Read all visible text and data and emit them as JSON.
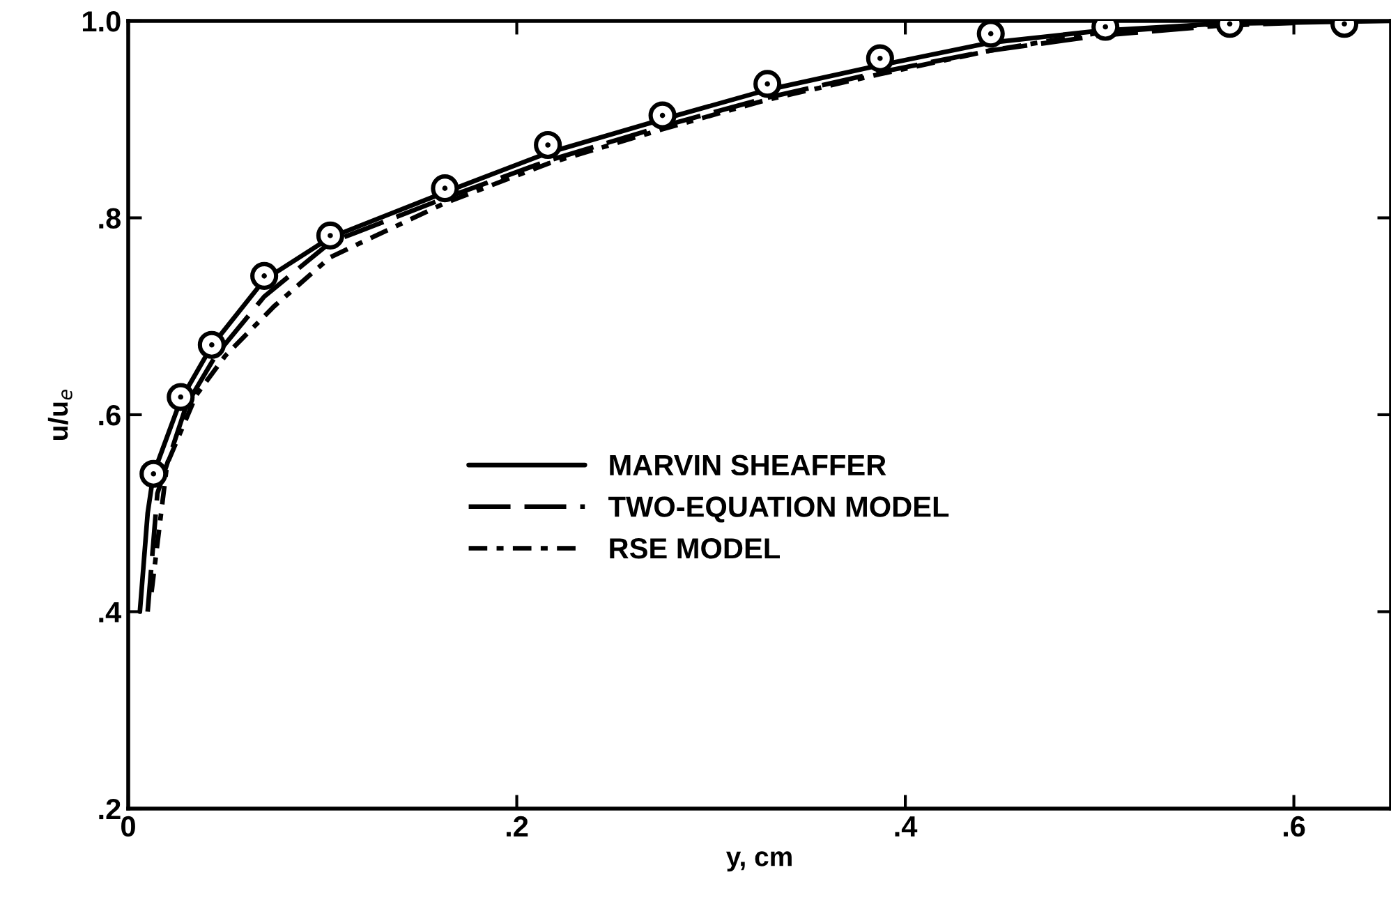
{
  "chart_data": {
    "type": "line",
    "xlabel": "y, cm",
    "ylabel": "u/u$_{e}$",
    "xlim": [
      0,
      0.65
    ],
    "ylim": [
      0.2,
      1.0
    ],
    "xticks": [
      {
        "value": 0,
        "label": "0"
      },
      {
        "value": 0.2,
        "label": ".2"
      },
      {
        "value": 0.4,
        "label": ".4"
      },
      {
        "value": 0.6,
        "label": ".6"
      }
    ],
    "yticks": [
      {
        "value": 0.2,
        "label": ".2"
      },
      {
        "value": 0.4,
        "label": ".4"
      },
      {
        "value": 0.6,
        "label": ".6"
      },
      {
        "value": 0.8,
        "label": ".8"
      },
      {
        "value": 1.0,
        "label": "1.0"
      }
    ],
    "grid": false,
    "legend": "center",
    "marker": "none",
    "series": [
      {
        "name": "MARVIN SHEAFFER",
        "color": "#000000",
        "line_style": "solid",
        "x": [
          0.006,
          0.01,
          0.013,
          0.027,
          0.043,
          0.07,
          0.104,
          0.163,
          0.216,
          0.275,
          0.329,
          0.387,
          0.444,
          0.5,
          0.56,
          0.65
        ],
        "values": [
          0.4,
          0.5,
          0.54,
          0.615,
          0.67,
          0.737,
          0.78,
          0.826,
          0.866,
          0.9,
          0.93,
          0.955,
          0.978,
          0.99,
          0.997,
          1.0
        ]
      },
      {
        "name": "TWO-EQUATION MODEL",
        "color": "#000000",
        "line_style": "dashed",
        "x": [
          0.01,
          0.015,
          0.03,
          0.045,
          0.07,
          0.104,
          0.163,
          0.216,
          0.275,
          0.329,
          0.387,
          0.444,
          0.5,
          0.56,
          0.6
        ],
        "values": [
          0.4,
          0.52,
          0.61,
          0.66,
          0.72,
          0.775,
          0.82,
          0.858,
          0.893,
          0.922,
          0.948,
          0.97,
          0.985,
          0.995,
          0.998
        ]
      },
      {
        "name": "RSE MODEL",
        "color": "#000000",
        "line_style": "dotted",
        "x": [
          0.012,
          0.02,
          0.035,
          0.05,
          0.075,
          0.104,
          0.163,
          0.216,
          0.275,
          0.329,
          0.387,
          0.444,
          0.5,
          0.56,
          0.6
        ],
        "values": [
          0.42,
          0.55,
          0.62,
          0.66,
          0.71,
          0.76,
          0.815,
          0.855,
          0.89,
          0.92,
          0.946,
          0.97,
          0.988,
          0.997,
          1.0
        ]
      },
      {
        "type": "scatter",
        "marker": "circle",
        "color": "#000000",
        "x": [
          0.013,
          0.027,
          0.043,
          0.07,
          0.104,
          0.163,
          0.216,
          0.275,
          0.329,
          0.387,
          0.444,
          0.503,
          0.567,
          0.626
        ],
        "values": [
          0.54,
          0.618,
          0.671,
          0.741,
          0.782,
          0.83,
          0.874,
          0.904,
          0.936,
          0.962,
          0.987,
          0.994,
          0.997,
          0.997
        ]
      }
    ]
  }
}
